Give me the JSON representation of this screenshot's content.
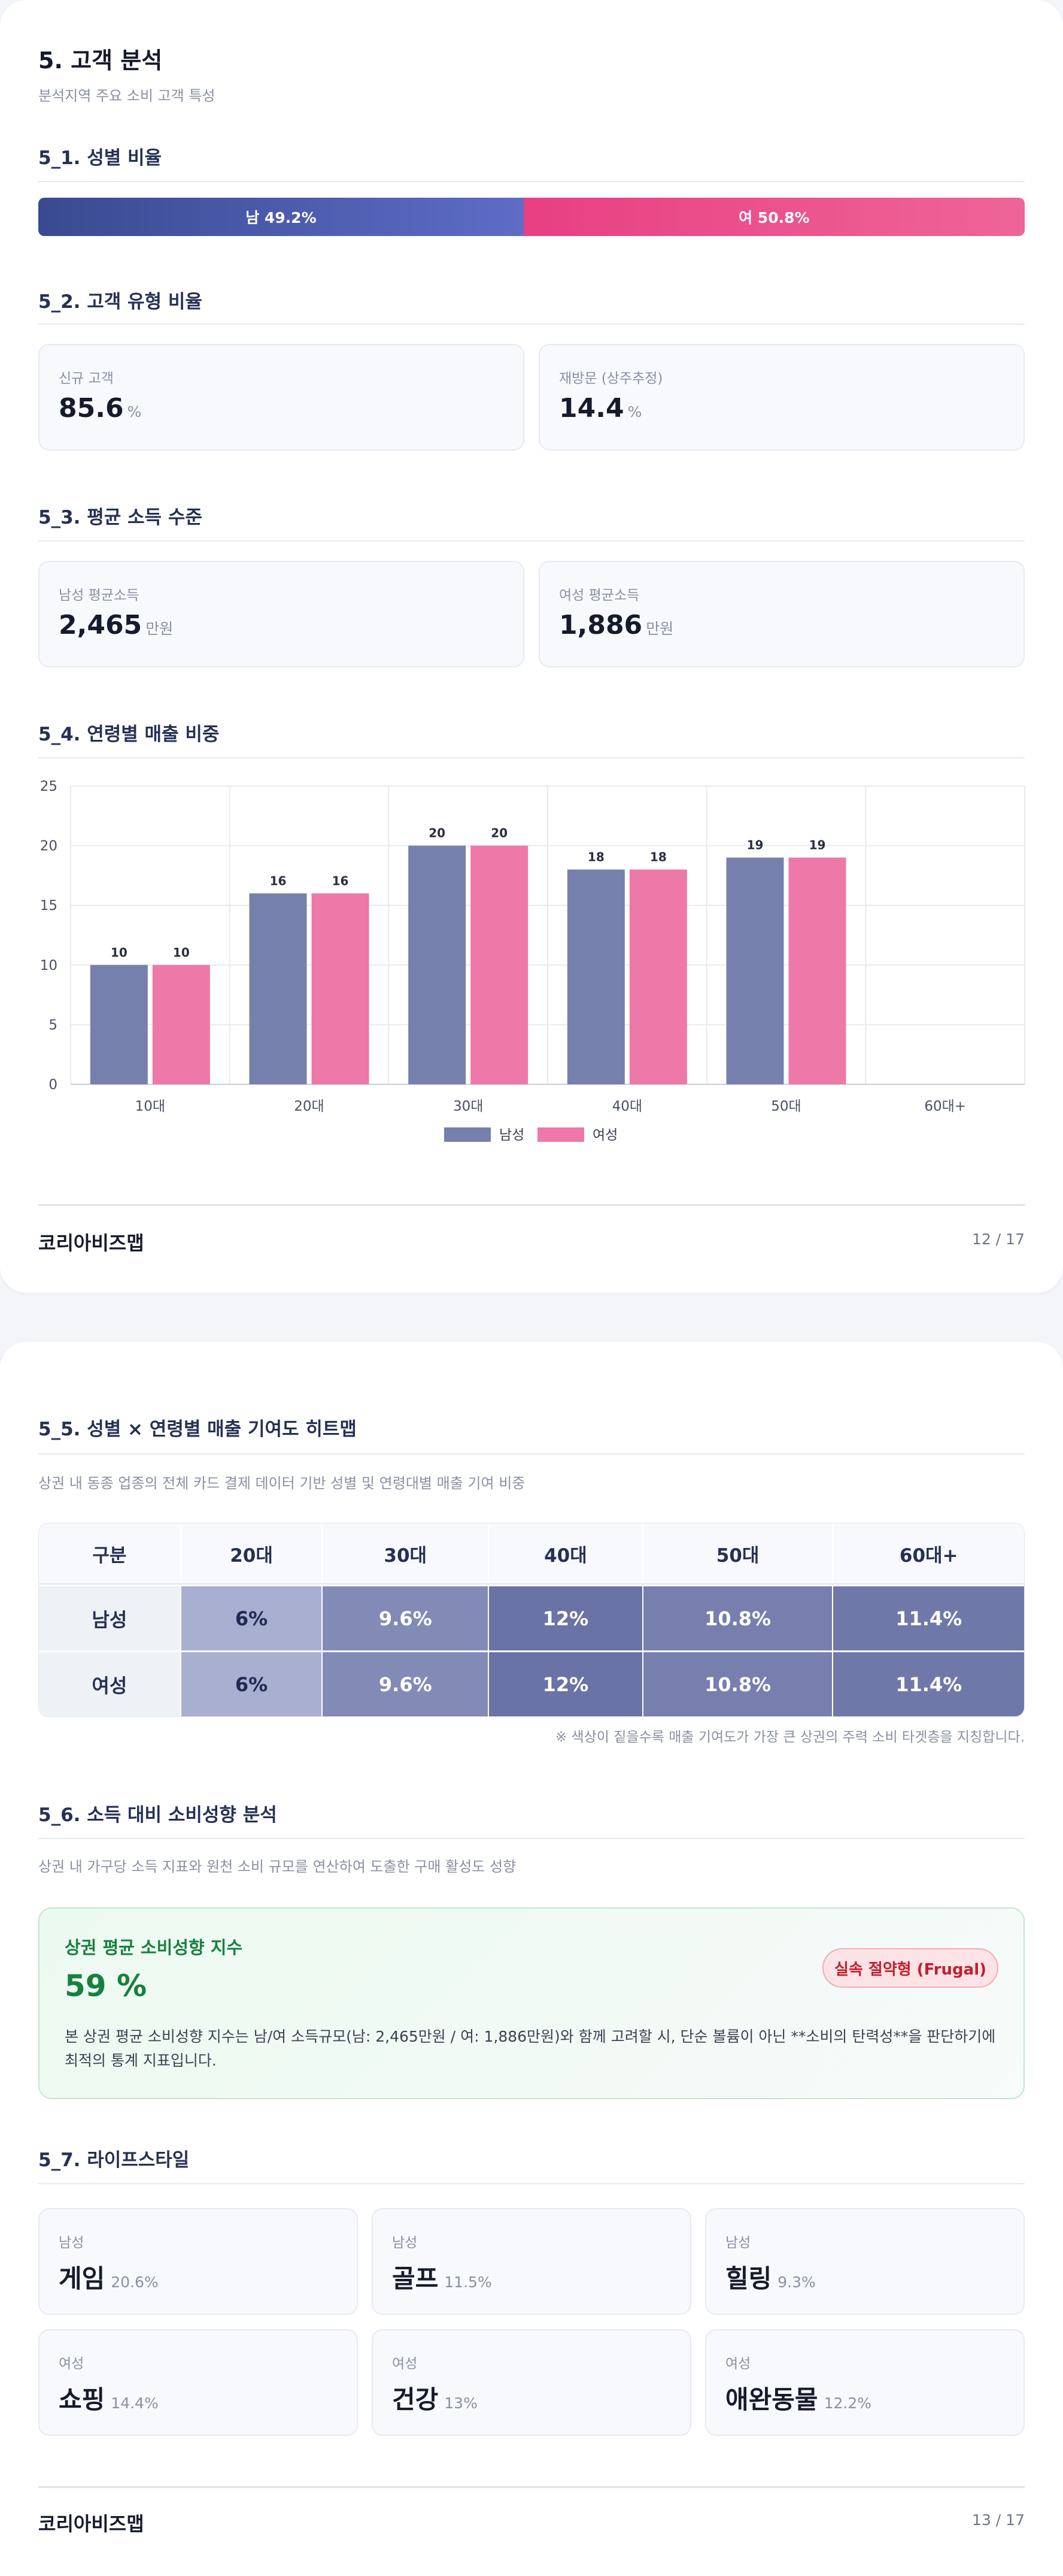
{
  "page1": {
    "title": "5. 고객 분석",
    "subtitle": "분석지역 주요 소비 고객 특성",
    "gender": {
      "section_title": "5_1. 성별 비율",
      "male_label": "남 49.2%",
      "female_label": "여 50.8%",
      "male_pct": 49.2,
      "female_pct": 50.8
    },
    "customer_type": {
      "section_title": "5_2. 고객 유형 비율",
      "cards": [
        {
          "label": "신규 고객",
          "value": "85.6",
          "unit": "%"
        },
        {
          "label": "재방문 (상주추정)",
          "value": "14.4",
          "unit": "%"
        }
      ]
    },
    "income": {
      "section_title": "5_3. 평균 소득 수준",
      "cards": [
        {
          "label": "남성 평균소득",
          "value": "2,465",
          "unit": "만원"
        },
        {
          "label": "여성 평균소득",
          "value": "1,886",
          "unit": "만원"
        }
      ]
    },
    "age_sales": {
      "section_title": "5_4. 연령별 매출 비중"
    },
    "footer": {
      "brand": "코리아비즈맵",
      "page": "12 / 17"
    }
  },
  "chart_data": {
    "type": "bar",
    "categories": [
      "10대",
      "20대",
      "30대",
      "40대",
      "50대",
      "60대+"
    ],
    "series": [
      {
        "name": "남성",
        "values": [
          10,
          16,
          20,
          18,
          19,
          null
        ],
        "labels": [
          "10",
          "16",
          "20",
          "18",
          "19",
          ""
        ]
      },
      {
        "name": "여성",
        "values": [
          10,
          16,
          20,
          18,
          19,
          null
        ],
        "labels": [
          "10",
          "16",
          "20",
          "18",
          "19",
          ""
        ]
      }
    ],
    "ylim": [
      0,
      25
    ],
    "yticks": [
      "0",
      "5",
      "10",
      "15",
      "20",
      "25"
    ],
    "grid": true,
    "legend_position": "bottom",
    "colors": {
      "male": "#7680ad",
      "female": "#ee78a7"
    }
  },
  "page2": {
    "heatmap": {
      "section_title": "5_5. 성별 × 연령별 매출 기여도 히트맵",
      "description": "상권 내 동종 업종의 전체 카드 결제 데이터 기반 성별 및 연령대별 매출 기여 비중",
      "headers": [
        "구분",
        "20대",
        "30대",
        "40대",
        "50대",
        "60대+"
      ],
      "rows": [
        {
          "label": "남성",
          "cells": [
            "6%",
            "9.6%",
            "12%",
            "10.8%",
            "11.4%"
          ]
        },
        {
          "label": "여성",
          "cells": [
            "6%",
            "9.6%",
            "12%",
            "10.8%",
            "11.4%"
          ]
        }
      ],
      "values": [
        [
          6,
          9.6,
          12,
          10.8,
          11.4
        ],
        [
          6,
          9.6,
          12,
          10.8,
          11.4
        ]
      ],
      "note": "※ 색상이 짙을수록 매출 기여도가 가장 큰 상권의 주력 소비 타겟층을 지칭합니다."
    },
    "spending": {
      "section_title": "5_6. 소득 대비 소비성향 분석",
      "description": "상권 내 가구당 소득 지표와 원천 소비 규모를 연산하여 도출한 구매 활성도 성향",
      "box_title": "상권 평균 소비성향 지수",
      "value": "59 %",
      "badge": "실속 절약형 (Frugal)",
      "text": "본 상권 평균 소비성향 지수는 남/여 소득규모(남: 2,465만원 / 여: 1,886만원)와 함께 고려할 시, 단순 볼륨이 아닌 **소비의 탄력성**을 판단하기에 최적의 통계 지표입니다."
    },
    "lifestyle": {
      "section_title": "5_7. 라이프스타일",
      "cards": [
        {
          "gender": "남성",
          "name": "게임",
          "pct": "20.6%"
        },
        {
          "gender": "남성",
          "name": "골프",
          "pct": "11.5%"
        },
        {
          "gender": "남성",
          "name": "힐링",
          "pct": "9.3%"
        },
        {
          "gender": "여성",
          "name": "쇼핑",
          "pct": "14.4%"
        },
        {
          "gender": "여성",
          "name": "건강",
          "pct": "13%"
        },
        {
          "gender": "여성",
          "name": "애완동물",
          "pct": "12.2%"
        }
      ]
    },
    "footer": {
      "brand": "코리아비즈맵",
      "page": "13 / 17"
    }
  }
}
